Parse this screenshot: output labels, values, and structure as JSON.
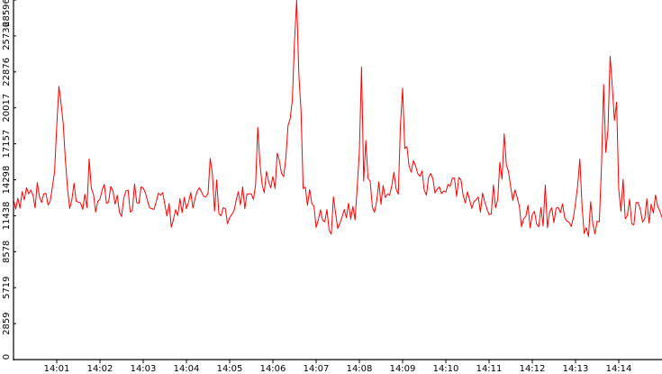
{
  "chart_data": {
    "type": "line",
    "title": "",
    "xlabel": "",
    "ylabel": "",
    "ylim": [
      0,
      28596
    ],
    "y_ticks": [
      "0",
      "2859",
      "5719",
      "8578",
      "11438",
      "14298",
      "17157",
      "20017",
      "22876",
      "25736",
      "28596"
    ],
    "x_tick_labels": [
      "14:01",
      "14:02",
      "14:03",
      "14:04",
      "14:05",
      "14:06",
      "14:07",
      "14:08",
      "14:09",
      "14:10",
      "14:11",
      "14:12",
      "14:13",
      "14:14"
    ],
    "x_range_minutes": [
      0,
      15.0
    ],
    "grid": false,
    "background": "#ffffff",
    "axis_color": "#000000",
    "series": [
      {
        "color": "#ff0000",
        "sample_interval_seconds": 3,
        "anchors": [
          [
            0.0,
            12800
          ],
          [
            0.3,
            13300
          ],
          [
            0.6,
            12600
          ],
          [
            0.9,
            13100
          ],
          [
            1.0,
            17500
          ],
          [
            1.05,
            20800
          ],
          [
            1.1,
            21000
          ],
          [
            1.15,
            19000
          ],
          [
            1.2,
            15500
          ],
          [
            1.3,
            13000
          ],
          [
            1.6,
            12500
          ],
          [
            2.0,
            13000
          ],
          [
            2.5,
            12200
          ],
          [
            2.9,
            13500
          ],
          [
            3.0,
            14000
          ],
          [
            3.2,
            13000
          ],
          [
            3.4,
            12500
          ],
          [
            3.6,
            11500
          ],
          [
            4.0,
            12000
          ],
          [
            4.3,
            12500
          ],
          [
            4.5,
            12600
          ],
          [
            4.55,
            16000
          ],
          [
            4.62,
            13000
          ],
          [
            4.9,
            11800
          ],
          [
            5.3,
            12800
          ],
          [
            5.6,
            14000
          ],
          [
            5.65,
            17500
          ],
          [
            5.75,
            14200
          ],
          [
            6.0,
            14000
          ],
          [
            6.3,
            15500
          ],
          [
            6.45,
            21500
          ],
          [
            6.55,
            28596
          ],
          [
            6.62,
            20000
          ],
          [
            6.7,
            14000
          ],
          [
            7.0,
            11500
          ],
          [
            7.3,
            10900
          ],
          [
            7.6,
            11800
          ],
          [
            7.9,
            12300
          ],
          [
            8.0,
            17000
          ],
          [
            8.05,
            20600
          ],
          [
            8.1,
            15000
          ],
          [
            8.3,
            12600
          ],
          [
            8.6,
            13500
          ],
          [
            8.9,
            14000
          ],
          [
            8.95,
            19000
          ],
          [
            9.0,
            22000
          ],
          [
            9.05,
            17000
          ],
          [
            9.2,
            14500
          ],
          [
            9.3,
            16000
          ],
          [
            9.5,
            13500
          ],
          [
            9.7,
            14500
          ],
          [
            10.0,
            13200
          ],
          [
            10.3,
            13500
          ],
          [
            10.6,
            13000
          ],
          [
            10.9,
            12000
          ],
          [
            11.2,
            13500
          ],
          [
            11.3,
            15500
          ],
          [
            11.35,
            17800
          ],
          [
            11.45,
            15000
          ],
          [
            11.55,
            12500
          ],
          [
            11.8,
            11200
          ],
          [
            12.2,
            11000
          ],
          [
            12.6,
            11500
          ],
          [
            12.9,
            11200
          ],
          [
            13.0,
            13000
          ],
          [
            13.1,
            15500
          ],
          [
            13.2,
            11000
          ],
          [
            13.35,
            10700
          ],
          [
            13.55,
            11000
          ],
          [
            13.65,
            21500
          ],
          [
            13.72,
            13500
          ],
          [
            13.82,
            26300
          ],
          [
            13.88,
            16000
          ],
          [
            13.93,
            22200
          ],
          [
            14.0,
            13000
          ],
          [
            14.3,
            11500
          ],
          [
            14.6,
            12000
          ],
          [
            15.0,
            12200
          ]
        ]
      }
    ]
  }
}
